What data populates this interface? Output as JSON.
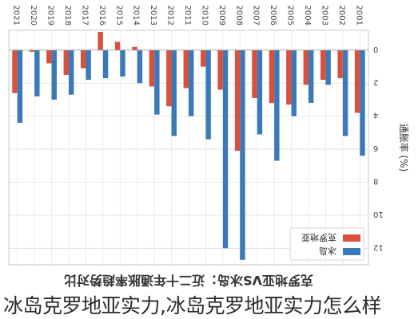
{
  "chart_data": {
    "type": "bar",
    "title": "克罗地亚VS冰岛：近二十年通胀率趋势对比",
    "ylabel": "通胀率 (%)",
    "xlabel": "",
    "ylim": [
      -1.2,
      13
    ],
    "yticks": [
      0,
      2,
      4,
      6,
      8,
      10,
      12
    ],
    "grid": true,
    "legend": "top-left",
    "categories": [
      "2001",
      "2002",
      "2003",
      "2004",
      "2005",
      "2006",
      "2007",
      "2008",
      "2009",
      "2010",
      "2011",
      "2012",
      "2013",
      "2014",
      "2015",
      "2016",
      "2017",
      "2018",
      "2019",
      "2020",
      "2021"
    ],
    "series": [
      {
        "name": "冰岛",
        "color": "#3b7ab8",
        "values": [
          6.4,
          5.2,
          2.1,
          3.2,
          4.0,
          6.7,
          5.1,
          12.7,
          12.0,
          5.4,
          4.0,
          5.2,
          3.9,
          2.0,
          1.6,
          1.7,
          1.8,
          2.7,
          3.0,
          2.8,
          4.4
        ]
      },
      {
        "name": "克罗地亚",
        "color": "#d9503f",
        "values": [
          3.8,
          1.7,
          1.8,
          2.1,
          3.3,
          3.2,
          2.9,
          6.1,
          2.4,
          1.0,
          2.3,
          3.4,
          2.2,
          -0.2,
          -0.5,
          -1.1,
          1.1,
          1.5,
          0.8,
          0.1,
          2.6
        ]
      }
    ]
  },
  "caption": "冰岛克罗地亚实力,冰岛克罗地亚实力怎么样"
}
